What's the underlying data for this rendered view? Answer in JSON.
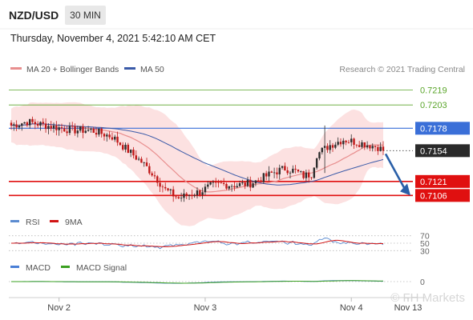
{
  "header": {
    "symbol": "NZD/USD",
    "timeframe": "30 MIN",
    "datetime": "Thursday, November 4, 2021 5:42:10 AM CET"
  },
  "legend": {
    "ma20": "MA 20 + Bollinger Bands",
    "ma50": "MA 50",
    "credit": "Research © 2021 Trading Central"
  },
  "colors": {
    "up_candle": "#2e2e2e",
    "down_candle": "#c01818",
    "ma20": "#e88e8e",
    "ma50": "#3a5aa8",
    "bands_fill": "#fbdada",
    "green_level": "#5aa52a",
    "blue_level": "#3a6fd8",
    "red_level": "#e01010",
    "arrow": "#2a5fa8",
    "rsi": "#5b8bd0",
    "rsi_ma": "#d11414",
    "macd": "#4a7fd6",
    "macd_signal": "#3aa020"
  },
  "chart_data": [
    {
      "type": "candlestick",
      "title": "NZD/USD",
      "timeframe": "30 MIN",
      "ylim": [
        0.7084,
        0.7234
      ],
      "x_ticks": [
        "Nov 2",
        "Nov 3",
        "Nov 4",
        "Nov 13"
      ],
      "levels": [
        {
          "value": 0.7219,
          "label": "0.7219",
          "kind": "resistance",
          "color": "#5aa52a"
        },
        {
          "value": 0.7203,
          "label": "0.7203",
          "kind": "resistance",
          "color": "#5aa52a"
        },
        {
          "value": 0.7178,
          "label": "0.7178",
          "kind": "pivot",
          "color": "#3a6fd8"
        },
        {
          "value": 0.7154,
          "label": "0.7154",
          "kind": "last",
          "color": "#2a2a2a"
        },
        {
          "value": 0.7121,
          "label": "0.7121",
          "kind": "support",
          "color": "#e01010"
        },
        {
          "value": 0.7106,
          "label": "0.7106",
          "kind": "support",
          "color": "#e01010"
        }
      ],
      "path": [
        [
          0,
          0.7181
        ],
        [
          6,
          0.7185
        ],
        [
          15,
          0.718
        ],
        [
          23,
          0.7176
        ],
        [
          30,
          0.7176
        ],
        [
          38,
          0.7169
        ],
        [
          44,
          0.7154
        ],
        [
          49,
          0.7142
        ],
        [
          54,
          0.7127
        ],
        [
          58,
          0.7112
        ],
        [
          63,
          0.7103
        ],
        [
          67,
          0.7107
        ],
        [
          71,
          0.711
        ],
        [
          75,
          0.7116
        ],
        [
          79,
          0.7118
        ],
        [
          85,
          0.7117
        ],
        [
          90,
          0.7119
        ],
        [
          94,
          0.7124
        ],
        [
          99,
          0.7131
        ],
        [
          103,
          0.7135
        ],
        [
          107,
          0.7132
        ],
        [
          110,
          0.7127
        ],
        [
          113,
          0.7129
        ],
        [
          115,
          0.715
        ],
        [
          120,
          0.716
        ],
        [
          125,
          0.7166
        ],
        [
          130,
          0.7163
        ],
        [
          135,
          0.716
        ],
        [
          138,
          0.7158
        ],
        [
          140,
          0.7154
        ]
      ],
      "n_candles": 141,
      "last_price": 0.7154,
      "forecast_arrow": {
        "from": 0.7154,
        "to": 0.7106
      }
    },
    {
      "type": "line",
      "title": "RSI",
      "series": [
        {
          "name": "RSI"
        },
        {
          "name": "9MA"
        }
      ],
      "y_ticks": [
        70,
        50,
        30
      ],
      "ylim": [
        20,
        80
      ]
    },
    {
      "type": "line",
      "title": "MACD",
      "series": [
        {
          "name": "MACD"
        },
        {
          "name": "MACD Signal"
        }
      ],
      "y_ticks": [
        0
      ]
    }
  ],
  "watermark": "© FH Markets"
}
